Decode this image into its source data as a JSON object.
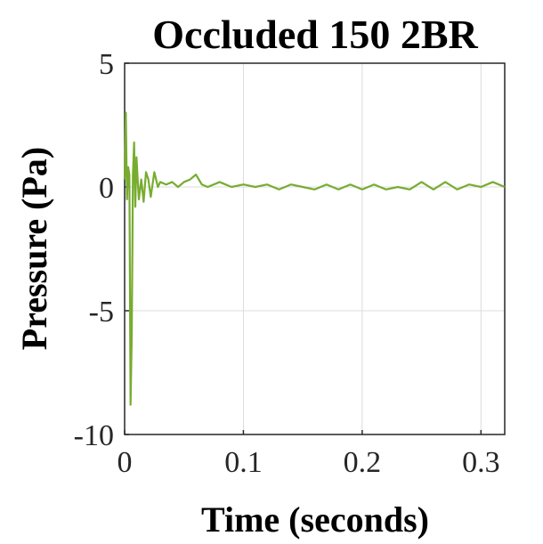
{
  "chart_data": {
    "type": "line",
    "title": "Occluded 150 2BR",
    "xlabel": "Time (seconds)",
    "ylabel": "Pressure (Pa)",
    "xlim": [
      0,
      0.32
    ],
    "ylim": [
      -10,
      5
    ],
    "xticks": [
      0,
      0.1,
      0.2,
      0.3
    ],
    "xtick_labels": [
      "0",
      "0.1",
      "0.2",
      "0.3"
    ],
    "yticks": [
      -10,
      -5,
      0,
      5
    ],
    "ytick_labels": [
      "-10",
      "-5",
      "0",
      "5"
    ],
    "grid": true,
    "line_color": "#77ac30",
    "series": [
      {
        "name": "",
        "x": [
          0,
          0.001,
          0.002,
          0.003,
          0.004,
          0.005,
          0.006,
          0.007,
          0.008,
          0.009,
          0.01,
          0.011,
          0.012,
          0.014,
          0.016,
          0.018,
          0.02,
          0.022,
          0.025,
          0.028,
          0.03,
          0.035,
          0.04,
          0.045,
          0.05,
          0.055,
          0.06,
          0.065,
          0.07,
          0.08,
          0.09,
          0.1,
          0.11,
          0.12,
          0.13,
          0.14,
          0.15,
          0.16,
          0.17,
          0.18,
          0.19,
          0.2,
          0.21,
          0.22,
          0.23,
          0.24,
          0.25,
          0.26,
          0.27,
          0.28,
          0.29,
          0.3,
          0.31,
          0.32
        ],
        "y": [
          0.3,
          3.0,
          -0.5,
          0.8,
          0.5,
          -8.8,
          -6.0,
          0.5,
          1.8,
          -0.8,
          1.2,
          0.3,
          -0.5,
          0.3,
          -0.6,
          0.6,
          0.3,
          -0.4,
          0.6,
          0.0,
          0.2,
          0.1,
          0.2,
          0.0,
          0.2,
          0.3,
          0.5,
          0.1,
          0.0,
          0.2,
          0.0,
          0.1,
          0.0,
          0.1,
          -0.1,
          0.1,
          0.0,
          -0.1,
          0.1,
          -0.1,
          0.1,
          -0.1,
          0.1,
          -0.1,
          0.0,
          -0.1,
          0.2,
          -0.1,
          0.2,
          -0.1,
          0.1,
          0.0,
          0.2,
          0.0
        ]
      }
    ]
  }
}
